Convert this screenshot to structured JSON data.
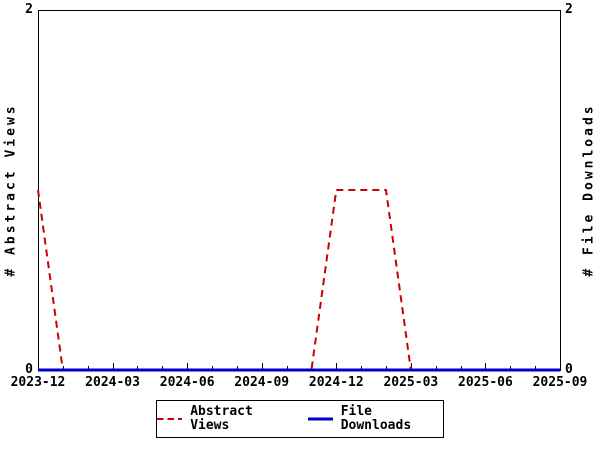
{
  "chart_data": {
    "type": "line",
    "title": "",
    "x": [
      "2023-12",
      "2024-01",
      "2024-02",
      "2024-03",
      "2024-04",
      "2024-05",
      "2024-06",
      "2024-07",
      "2024-08",
      "2024-09",
      "2024-10",
      "2024-11",
      "2024-12",
      "2025-01",
      "2025-02",
      "2025-03",
      "2025-04",
      "2025-05",
      "2025-06",
      "2025-07",
      "2025-08",
      "2025-09"
    ],
    "x_tick_labels": [
      "2023-12",
      "2024-03",
      "2024-06",
      "2024-09",
      "2024-12",
      "2025-03",
      "2025-06",
      "2025-09"
    ],
    "x_label_every": 3,
    "ylim": [
      0,
      2
    ],
    "y_tick_values": [
      0,
      2
    ],
    "y_tick_labels": {
      "top": "2",
      "bottom": "0"
    },
    "ylabel_left": "# Abstract Views",
    "ylabel_right": "# File Downloads",
    "grid": false,
    "legend_position": "bottom-center",
    "axis_color": "#000000",
    "background_color": "#ffffff",
    "series": [
      {
        "name": "Abstract Views",
        "color": "#cc0000",
        "style": "dashed",
        "axis": "left",
        "values": [
          1,
          0,
          0,
          0,
          0,
          0,
          0,
          0,
          0,
          0,
          0,
          0,
          1,
          1,
          1,
          0,
          0,
          0,
          0,
          0,
          0,
          0
        ]
      },
      {
        "name": "File Downloads",
        "color": "#0000cc",
        "style": "solid",
        "axis": "right",
        "values": [
          0,
          0,
          0,
          0,
          0,
          0,
          0,
          0,
          0,
          0,
          0,
          0,
          0,
          0,
          0,
          0,
          0,
          0,
          0,
          0,
          0,
          0
        ]
      }
    ]
  }
}
